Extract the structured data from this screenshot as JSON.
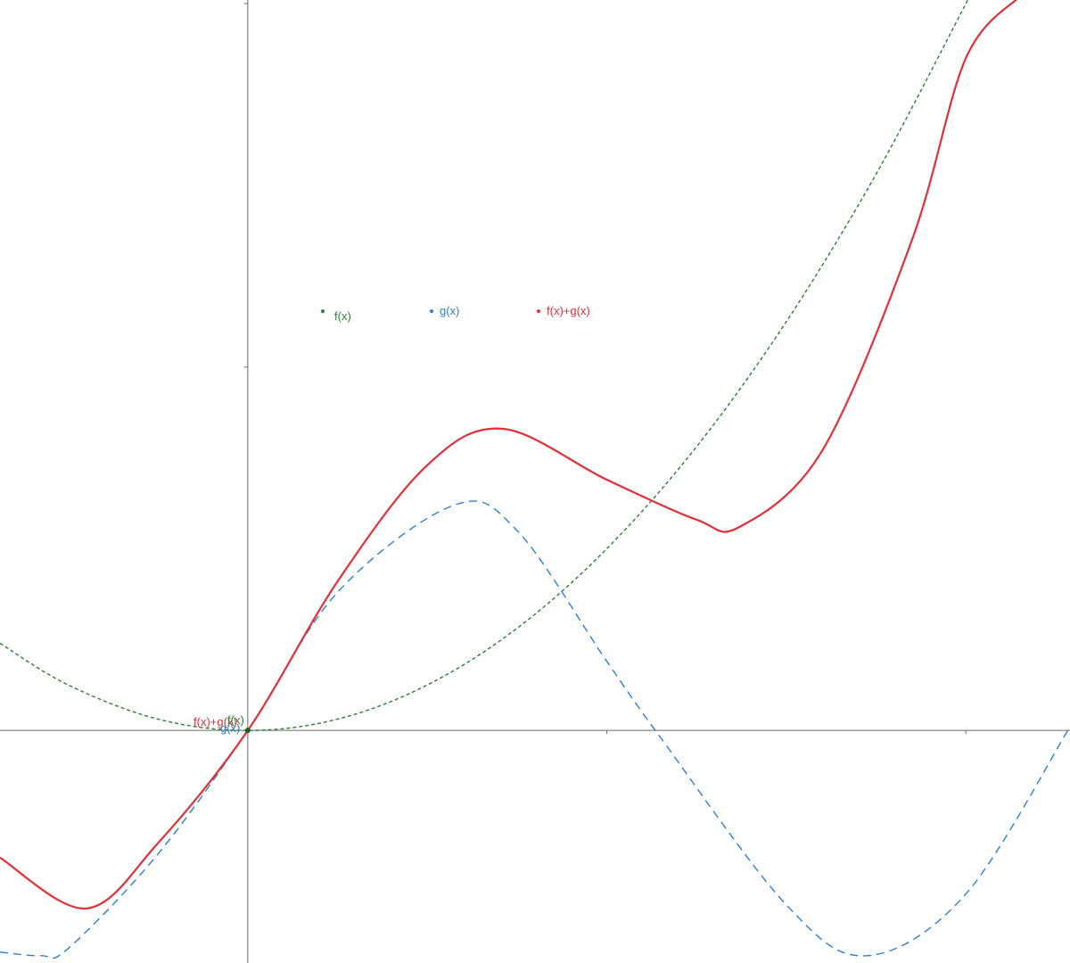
{
  "chart_data": {
    "type": "line",
    "title": "",
    "xlabel": "",
    "ylabel": "",
    "grid": false,
    "xlim": [
      -0.69,
      2.29
    ],
    "ylim": [
      -0.64,
      2.01
    ],
    "axis_ticks": {
      "x": [
        1,
        2
      ],
      "y": [
        1,
        2
      ]
    },
    "series": [
      {
        "name": "f(x)",
        "color": "#2e7d32",
        "style": "dotted",
        "x": [
          -0.69,
          -0.5,
          -0.25,
          0,
          0.25,
          0.5,
          0.75,
          1.0,
          1.25,
          1.5,
          1.75,
          2.0,
          2.01
        ],
        "y": [
          0.24,
          0.125,
          0.031,
          0,
          0.031,
          0.125,
          0.281,
          0.5,
          0.781,
          1.125,
          1.531,
          2.0,
          2.02
        ]
      },
      {
        "name": "g(x)",
        "color": "#2f7fd0",
        "style": "dashed",
        "x": [
          -0.69,
          -0.575,
          -0.5,
          -0.25,
          0,
          0.25,
          0.575,
          0.75,
          1.0,
          1.15,
          1.5,
          1.725,
          2.0,
          2.29
        ],
        "y": [
          -0.61,
          -0.62,
          -0.6,
          -0.34,
          0,
          0.38,
          0.62,
          0.55,
          0.19,
          -0.02,
          -0.48,
          -0.62,
          -0.45,
          0.01
        ]
      },
      {
        "name": "f(x)+g(x)",
        "color": "#e0303a",
        "style": "solid",
        "x": [
          -0.69,
          -0.45,
          -0.25,
          0,
          0.25,
          0.5,
          0.71,
          1.0,
          1.25,
          1.37,
          1.6,
          1.85,
          2.0,
          2.15
        ],
        "y": [
          -0.35,
          -0.49,
          -0.31,
          0,
          0.41,
          0.73,
          0.83,
          0.69,
          0.58,
          0.56,
          0.77,
          1.35,
          1.85,
          2.02
        ]
      }
    ],
    "legend": {
      "placement": "top-center",
      "entries": [
        "f(x)",
        "g(x)",
        "f(x)+g(x)"
      ]
    },
    "origin_labels": [
      "f(x)+g(x)",
      "f(x)",
      "g(x)"
    ]
  }
}
